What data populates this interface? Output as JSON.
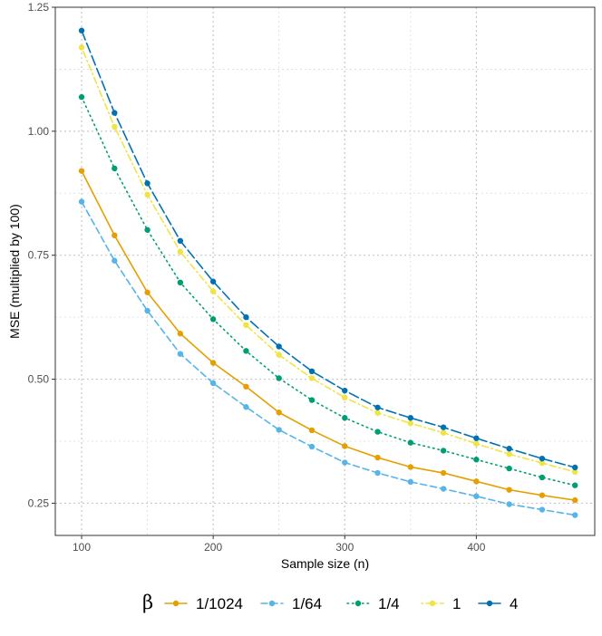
{
  "chart_data": {
    "type": "line",
    "xlabel": "Sample size (n)",
    "ylabel": "MSE (multiplied by 100)",
    "xlim": [
      80,
      490
    ],
    "ylim": [
      0.185,
      1.25
    ],
    "x_ticks": [
      100,
      200,
      300,
      400
    ],
    "x_tick_labels": [
      "100",
      "200",
      "300",
      "400"
    ],
    "y_ticks": [
      0.25,
      0.5,
      0.75,
      1.0,
      1.25
    ],
    "y_tick_labels": [
      "0.25",
      "0.50",
      "0.75",
      "1.00",
      "1.25"
    ],
    "grid": true,
    "legend_position": "bottom",
    "legend_title": "β",
    "x": [
      100,
      125,
      150,
      175,
      200,
      225,
      250,
      275,
      300,
      325,
      350,
      375,
      400,
      425,
      450,
      475
    ],
    "series": [
      {
        "name": "1/1024",
        "color": "#E69F00",
        "dash": "solid",
        "values": [
          0.92,
          0.79,
          0.675,
          0.592,
          0.533,
          0.485,
          0.433,
          0.397,
          0.365,
          0.342,
          0.323,
          0.311,
          0.294,
          0.277,
          0.266,
          0.256
        ]
      },
      {
        "name": "1/64",
        "color": "#56B4E9",
        "dash": "dashed",
        "values": [
          0.858,
          0.739,
          0.638,
          0.551,
          0.492,
          0.444,
          0.398,
          0.364,
          0.332,
          0.311,
          0.293,
          0.279,
          0.264,
          0.248,
          0.237,
          0.226
        ]
      },
      {
        "name": "1/4",
        "color": "#009E73",
        "dash": "dotted",
        "values": [
          1.069,
          0.925,
          0.801,
          0.695,
          0.621,
          0.557,
          0.502,
          0.458,
          0.422,
          0.394,
          0.372,
          0.356,
          0.338,
          0.32,
          0.302,
          0.286
        ]
      },
      {
        "name": "1",
        "color": "#F0E442",
        "dash": "dotdash",
        "values": [
          1.169,
          1.009,
          0.872,
          0.757,
          0.677,
          0.609,
          0.549,
          0.502,
          0.463,
          0.432,
          0.411,
          0.392,
          0.37,
          0.349,
          0.331,
          0.313
        ]
      },
      {
        "name": "4",
        "color": "#0072B2",
        "dash": "longdash",
        "values": [
          1.203,
          1.037,
          0.895,
          0.779,
          0.697,
          0.625,
          0.566,
          0.516,
          0.477,
          0.443,
          0.422,
          0.403,
          0.381,
          0.36,
          0.34,
          0.322
        ]
      }
    ]
  }
}
